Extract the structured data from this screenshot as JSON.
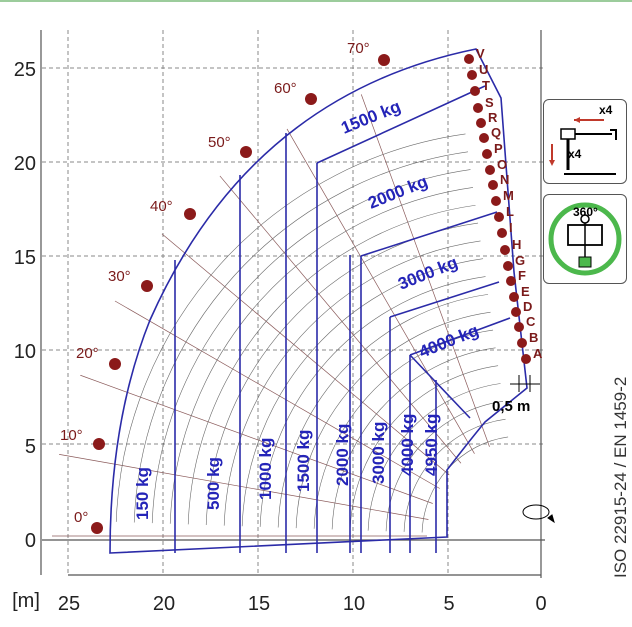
{
  "axes": {
    "x_unit_label": "[m]",
    "x_ticks": [
      "25",
      "20",
      "15",
      "10",
      "5",
      "0"
    ],
    "y_ticks": [
      "0",
      "5",
      "10",
      "15",
      "20",
      "25"
    ]
  },
  "angles": [
    "0°",
    "10°",
    "20°",
    "30°",
    "40°",
    "50°",
    "60°",
    "70°"
  ],
  "letters": [
    "A",
    "B",
    "C",
    "D",
    "E",
    "F",
    "G",
    "H",
    "I",
    "L",
    "M",
    "N",
    "O",
    "P",
    "Q",
    "R",
    "S",
    "T",
    "U",
    "V"
  ],
  "load_zones": [
    "150 kg",
    "500 kg",
    "1000 kg",
    "1500 kg",
    "2000 kg",
    "3000 kg",
    "4000 kg",
    "4950 kg"
  ],
  "arc_loads": [
    "1500 kg",
    "2000 kg",
    "3000 kg",
    "4000 kg"
  ],
  "dimension": "0,5 m",
  "standard": "ISO 22915-24  / EN 1459-2",
  "panel_top": {
    "label_x": "x4",
    "label_y": "x4",
    "icon": "outrigger-icon"
  },
  "panel_bottom": {
    "label": "360°",
    "icon": "rotation-icon",
    "accent": "#4cb84c"
  },
  "colors": {
    "outline": "#2b2ba8",
    "grid": "#7a4040",
    "marker": "#8b1a1a",
    "axis": "#555555"
  }
}
